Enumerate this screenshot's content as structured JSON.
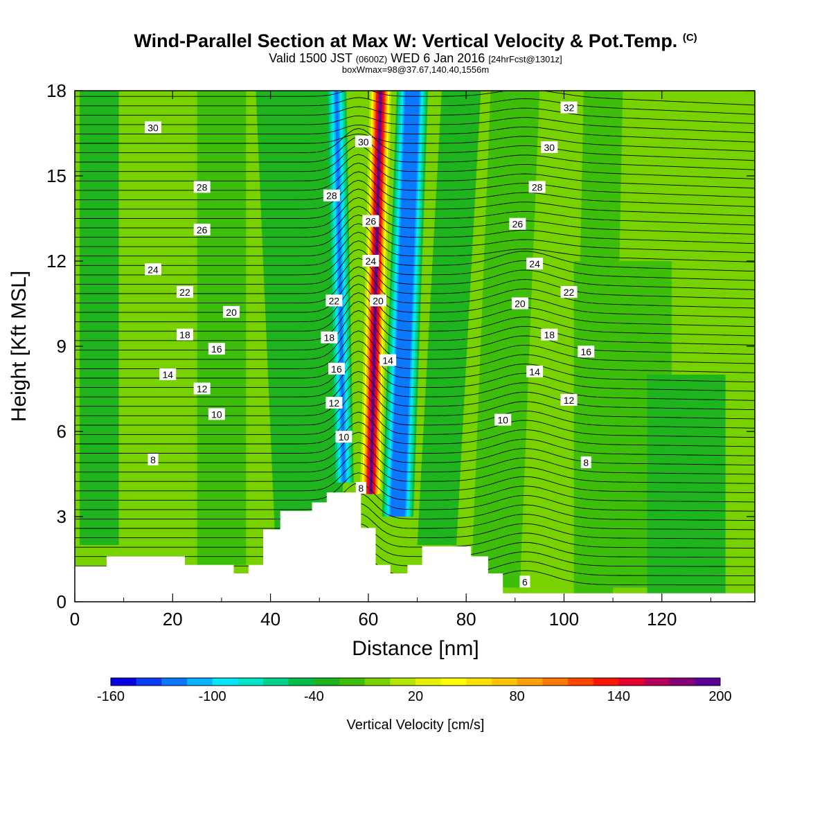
{
  "title": {
    "main": "Wind-Parallel Section at Max W: Vertical Velocity & Pot.Temp.",
    "copyright": "(C)",
    "valid_prefix": "Valid 1500 JST",
    "valid_utc": "(0600Z)",
    "valid_day": "WED 6 Jan 2016",
    "valid_fcst": "[24hrFcst@1301z]",
    "box": "boxWmax=98@37.67,140.40,1556m"
  },
  "chart_data": {
    "type": "contour-section",
    "xlabel": "Distance [nm]",
    "ylabel": "Height [Kft MSL]",
    "xlim": [
      0,
      139
    ],
    "ylim": [
      0,
      18
    ],
    "x_ticks": [
      0,
      20,
      40,
      60,
      80,
      100,
      120
    ],
    "y_ticks": [
      0,
      3,
      6,
      9,
      12,
      15,
      18
    ],
    "colorbar": {
      "label": "Vertical Velocity [cm/s]",
      "tick_labels": [
        "-160",
        "-100",
        "-40",
        "20",
        "80",
        "140",
        "200"
      ],
      "colors": [
        "#0a00e6",
        "#0a3cf5",
        "#0a78ff",
        "#00b4ff",
        "#00e6ff",
        "#00e6c8",
        "#00d28c",
        "#00be46",
        "#1eb41e",
        "#3cbe0a",
        "#78d200",
        "#b4e600",
        "#e6f000",
        "#ffff00",
        "#ffe100",
        "#ffc300",
        "#ffa000",
        "#ff7800",
        "#ff4600",
        "#ff1400",
        "#e60032",
        "#b4005a",
        "#820078",
        "#5a0096"
      ]
    },
    "background_color": "#78d200",
    "terrain_profile": [
      [
        0,
        1.25
      ],
      [
        6.5,
        1.25
      ],
      [
        6.5,
        1.6
      ],
      [
        22.5,
        1.6
      ],
      [
        22.5,
        1.3
      ],
      [
        32.5,
        1.3
      ],
      [
        32.5,
        1.0
      ],
      [
        35.5,
        1.0
      ],
      [
        35.5,
        1.3
      ],
      [
        38.5,
        1.3
      ],
      [
        38.5,
        2.55
      ],
      [
        42,
        2.55
      ],
      [
        42,
        3.2
      ],
      [
        48.5,
        3.2
      ],
      [
        48.5,
        3.5
      ],
      [
        51.5,
        3.5
      ],
      [
        51.5,
        3.85
      ],
      [
        58.5,
        3.85
      ],
      [
        58.5,
        2.6
      ],
      [
        61.5,
        2.6
      ],
      [
        61.5,
        1.3
      ],
      [
        64.5,
        1.3
      ],
      [
        64.5,
        1.0
      ],
      [
        68,
        1.0
      ],
      [
        68,
        1.3
      ],
      [
        71,
        1.3
      ],
      [
        71,
        1.95
      ],
      [
        81,
        1.95
      ],
      [
        81,
        1.6
      ],
      [
        84.5,
        1.6
      ],
      [
        84.5,
        1.0
      ],
      [
        87.5,
        1.0
      ],
      [
        87.5,
        0.3
      ],
      [
        139,
        0.3
      ]
    ],
    "velocity_features": [
      {
        "x_start": 60.5,
        "x_end": 62.5,
        "z_bottom": 3.8,
        "z_top": 18,
        "peak": 230
      },
      {
        "x_start": 55,
        "x_end": 53.5,
        "z_bottom": 4.2,
        "z_top": 18,
        "peak": -150
      },
      {
        "x_start": 66,
        "x_end": 69,
        "z_bottom": 3,
        "z_top": 18,
        "peak": -110
      }
    ],
    "theta_contour_labels": [
      {
        "text": "30",
        "x": 16,
        "y": 16.7
      },
      {
        "text": "28",
        "x": 26,
        "y": 14.6
      },
      {
        "text": "26",
        "x": 26,
        "y": 13.1
      },
      {
        "text": "24",
        "x": 16,
        "y": 11.7
      },
      {
        "text": "22",
        "x": 22.5,
        "y": 10.9
      },
      {
        "text": "20",
        "x": 32,
        "y": 10.2
      },
      {
        "text": "18",
        "x": 22.5,
        "y": 9.4
      },
      {
        "text": "16",
        "x": 29,
        "y": 8.9
      },
      {
        "text": "14",
        "x": 19,
        "y": 8.0
      },
      {
        "text": "12",
        "x": 26,
        "y": 7.5
      },
      {
        "text": "10",
        "x": 29,
        "y": 6.6
      },
      {
        "text": "8",
        "x": 16,
        "y": 5.0
      },
      {
        "text": "30",
        "x": 59,
        "y": 16.2
      },
      {
        "text": "28",
        "x": 52.5,
        "y": 14.3
      },
      {
        "text": "26",
        "x": 60.5,
        "y": 13.4
      },
      {
        "text": "24",
        "x": 60.5,
        "y": 12.0
      },
      {
        "text": "22",
        "x": 53,
        "y": 10.6
      },
      {
        "text": "20",
        "x": 62,
        "y": 10.6
      },
      {
        "text": "18",
        "x": 52,
        "y": 9.3
      },
      {
        "text": "14",
        "x": 64,
        "y": 8.5
      },
      {
        "text": "16",
        "x": 53.5,
        "y": 8.2
      },
      {
        "text": "12",
        "x": 53,
        "y": 7.0
      },
      {
        "text": "10",
        "x": 55,
        "y": 5.8
      },
      {
        "text": "8",
        "x": 58.5,
        "y": 4.0
      },
      {
        "text": "32",
        "x": 101,
        "y": 17.4
      },
      {
        "text": "30",
        "x": 97,
        "y": 16.0
      },
      {
        "text": "28",
        "x": 94.5,
        "y": 14.6
      },
      {
        "text": "26",
        "x": 90.5,
        "y": 13.3
      },
      {
        "text": "24",
        "x": 94,
        "y": 11.9
      },
      {
        "text": "22",
        "x": 101,
        "y": 10.9
      },
      {
        "text": "20",
        "x": 91,
        "y": 10.5
      },
      {
        "text": "18",
        "x": 97,
        "y": 9.4
      },
      {
        "text": "16",
        "x": 104.5,
        "y": 8.8
      },
      {
        "text": "14",
        "x": 94,
        "y": 8.1
      },
      {
        "text": "12",
        "x": 101,
        "y": 7.1
      },
      {
        "text": "10",
        "x": 87.5,
        "y": 6.4
      },
      {
        "text": "8",
        "x": 104.5,
        "y": 4.9
      },
      {
        "text": "6",
        "x": 92,
        "y": 0.7
      }
    ],
    "theta_levels": [
      6,
      32
    ],
    "theta_interval": 0.5
  }
}
